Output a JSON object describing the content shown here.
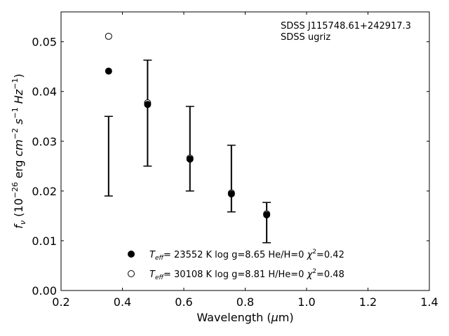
{
  "chart_data": {
    "type": "scatter",
    "title": "",
    "xlabel": {
      "prefix": "Wavelength (",
      "mu": "μ",
      "suffix": "m)"
    },
    "ylabel": {
      "f": "f",
      "nu": "ν",
      "open": " (10",
      "exp1": "−26",
      "mid": " erg ",
      "cm": "cm",
      "exp2": "−2",
      "s": " s",
      "exp3": "−1",
      "hz": " Hz",
      "exp4": "−1",
      "close": ")"
    },
    "xlim": [
      0.2,
      1.4
    ],
    "ylim": [
      0.0,
      0.056
    ],
    "xticks": [
      0.2,
      0.4,
      0.6,
      0.8,
      1.0,
      1.2,
      1.4
    ],
    "xtick_labels": [
      "0.2",
      "0.4",
      "0.6",
      "0.8",
      "1.0",
      "1.2",
      "1.4"
    ],
    "yticks": [
      0.0,
      0.01,
      0.02,
      0.03,
      0.04,
      0.05
    ],
    "ytick_labels": [
      "0.00",
      "0.01",
      "0.02",
      "0.03",
      "0.04",
      "0.05"
    ],
    "annotation": [
      "SDSS J115748.61+242917.3",
      "SDSS ugriz"
    ],
    "observed": {
      "x": [
        0.355,
        0.482,
        0.62,
        0.755,
        0.87
      ],
      "ylow": [
        0.019,
        0.025,
        0.02,
        0.0158,
        0.0096
      ],
      "yhigh": [
        0.035,
        0.0463,
        0.037,
        0.0292,
        0.0177
      ]
    },
    "series": [
      {
        "marker": "filled",
        "x": [
          0.355,
          0.482,
          0.62,
          0.755,
          0.87
        ],
        "y": [
          0.0441,
          0.0374,
          0.0264,
          0.0194,
          0.0152
        ],
        "legend": {
          "T": "T",
          "sub": "eff",
          "text": "= 23552 K  log g=8.65  He/H=0  ",
          "chi": "χ",
          "sup": "2",
          "chi_val": "=0.42"
        }
      },
      {
        "marker": "open",
        "x": [
          0.355,
          0.482,
          0.62,
          0.755,
          0.87
        ],
        "y": [
          0.0511,
          0.0377,
          0.0266,
          0.0196,
          0.0154
        ],
        "legend": {
          "T": "T",
          "sub": "eff",
          "text": "= 30108 K  log g=8.81  H/He=0  ",
          "chi": "χ",
          "sup": "2",
          "chi_val": "=0.48"
        }
      }
    ],
    "grid": false,
    "legend_position": "bottom"
  }
}
